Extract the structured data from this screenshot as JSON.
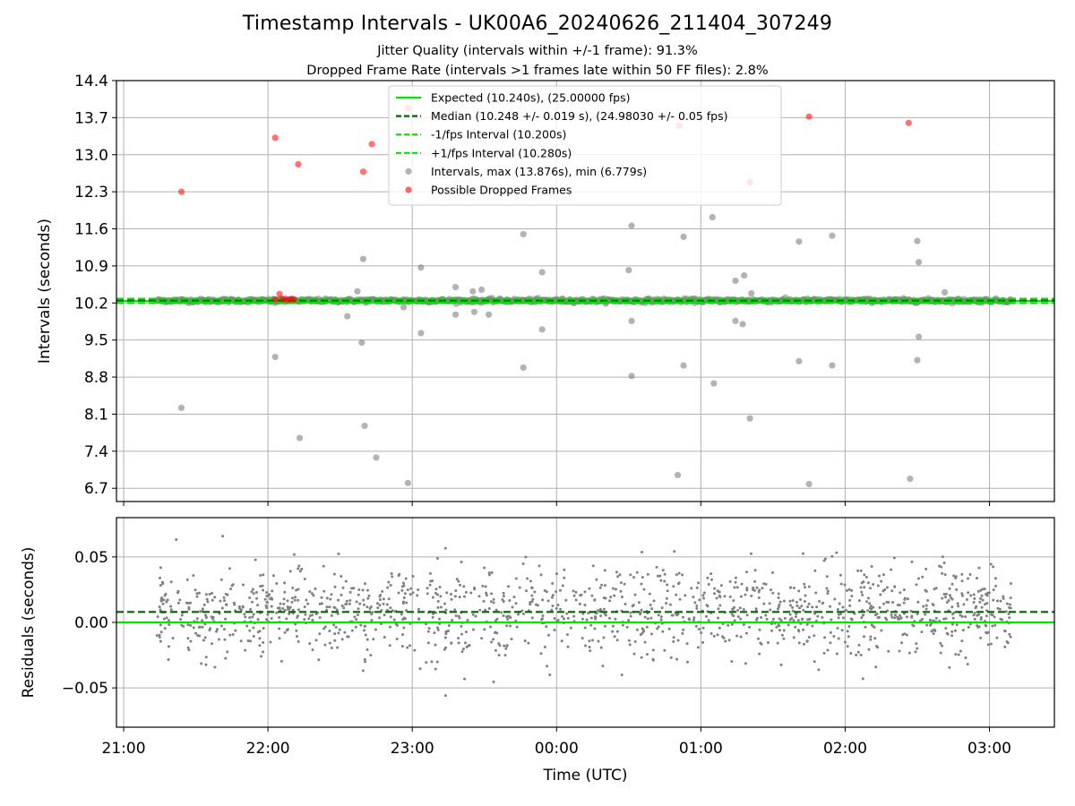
{
  "figure": {
    "title": "Timestamp Intervals - UK00A6_20240626_211404_307249",
    "subtitle_1": "Jitter Quality (intervals within +/-1 frame): 91.3%",
    "subtitle_2": "Dropped Frame Rate (intervals >1 frames late within 50 FF files): 2.8%"
  },
  "colors": {
    "expected": "#00e600",
    "median": "#006400",
    "fps_interval": "#00e600",
    "intervals": "#808080",
    "dropped": "#ff0000",
    "grid": "#b0b0b0"
  },
  "chart_data": [
    {
      "type": "scatter",
      "panel": "top",
      "ylabel": "Intervals (seconds)",
      "ylim": [
        6.45,
        14.4
      ],
      "xlim_hours": [
        20.95,
        27.45
      ],
      "yticks": [
        "6.7",
        "7.4",
        "8.1",
        "8.8",
        "9.5",
        "10.2",
        "10.9",
        "11.6",
        "12.3",
        "13.0",
        "13.7",
        "14.4"
      ],
      "grid": true,
      "legend_position": "upper center",
      "legend": [
        "Expected (10.240s), (25.00000 fps)",
        "Median (10.248 +/- 0.019 s), (24.98030 +/- 0.05 fps)",
        "-1/fps Interval (10.200s)",
        "+1/fps Interval (10.280s)",
        "Intervals, max (13.876s), min (6.779s)",
        "Possible Dropped Frames"
      ],
      "lines": [
        {
          "name": "Expected",
          "y": 10.24,
          "style": "solid"
        },
        {
          "name": "Median",
          "y": 10.248,
          "style": "dashed"
        },
        {
          "name": "-1/fps Interval",
          "y": 10.2,
          "style": "dashed"
        },
        {
          "name": "+1/fps Interval",
          "y": 10.28,
          "style": "dashed"
        }
      ],
      "intervals_band": {
        "x_start": 21.23,
        "x_end": 27.15,
        "y_center": 10.245,
        "y_spread": 0.035
      },
      "interval_outliers": [
        [
          21.4,
          8.22
        ],
        [
          22.05,
          9.18
        ],
        [
          22.05,
          10.2
        ],
        [
          22.22,
          7.65
        ],
        [
          22.55,
          9.95
        ],
        [
          22.62,
          10.42
        ],
        [
          22.66,
          11.03
        ],
        [
          22.65,
          9.45
        ],
        [
          22.67,
          7.88
        ],
        [
          22.75,
          7.28
        ],
        [
          22.97,
          6.8
        ],
        [
          22.94,
          10.12
        ],
        [
          23.06,
          10.87
        ],
        [
          23.06,
          9.63
        ],
        [
          23.3,
          10.5
        ],
        [
          23.3,
          9.98
        ],
        [
          23.42,
          10.42
        ],
        [
          23.43,
          10.03
        ],
        [
          23.48,
          10.45
        ],
        [
          23.53,
          9.98
        ],
        [
          23.77,
          11.5
        ],
        [
          23.77,
          8.98
        ],
        [
          23.9,
          10.78
        ],
        [
          23.9,
          9.7
        ],
        [
          24.5,
          10.82
        ],
        [
          24.52,
          11.66
        ],
        [
          24.52,
          9.86
        ],
        [
          24.52,
          8.82
        ],
        [
          24.84,
          6.95
        ],
        [
          24.88,
          9.02
        ],
        [
          24.88,
          11.45
        ],
        [
          25.08,
          11.82
        ],
        [
          25.09,
          8.68
        ],
        [
          25.24,
          10.62
        ],
        [
          25.24,
          9.86
        ],
        [
          25.3,
          10.72
        ],
        [
          25.29,
          9.8
        ],
        [
          25.34,
          8.02
        ],
        [
          25.35,
          10.38
        ],
        [
          25.68,
          11.36
        ],
        [
          25.68,
          9.1
        ],
        [
          25.75,
          6.78
        ],
        [
          25.91,
          11.47
        ],
        [
          25.91,
          9.02
        ],
        [
          26.45,
          6.88
        ],
        [
          26.5,
          11.37
        ],
        [
          26.51,
          10.97
        ],
        [
          26.51,
          9.56
        ],
        [
          26.5,
          9.12
        ],
        [
          26.69,
          10.4
        ]
      ],
      "dropped_frames": [
        [
          21.4,
          12.3
        ],
        [
          22.05,
          13.32
        ],
        [
          22.05,
          10.27
        ],
        [
          22.08,
          10.37
        ],
        [
          22.1,
          10.27
        ],
        [
          22.12,
          10.28
        ],
        [
          22.14,
          10.26
        ],
        [
          22.16,
          10.27
        ],
        [
          22.18,
          10.27
        ],
        [
          22.21,
          12.82
        ],
        [
          22.66,
          12.68
        ],
        [
          22.72,
          13.2
        ],
        [
          22.97,
          13.88
        ],
        [
          24.85,
          13.55
        ],
        [
          25.34,
          12.48
        ],
        [
          25.75,
          13.72
        ],
        [
          26.44,
          13.6
        ]
      ]
    },
    {
      "type": "scatter",
      "panel": "bottom",
      "ylabel": "Residuals (seconds)",
      "xlabel": "Time (UTC)",
      "ylim": [
        -0.08,
        0.08
      ],
      "yticks": [
        "−0.05",
        "0.00",
        "0.05"
      ],
      "xticks": [
        "21:00",
        "22:00",
        "23:00",
        "00:00",
        "01:00",
        "02:00",
        "03:00"
      ],
      "xlim_hours": [
        20.95,
        27.45
      ],
      "lines": [
        {
          "name": "Expected",
          "y": 0.0,
          "style": "solid"
        },
        {
          "name": "Median",
          "y": 0.008,
          "style": "dashed"
        }
      ],
      "residual_band": {
        "x_start": 21.23,
        "x_end": 27.15,
        "mean": 0.008,
        "sd": 0.017
      }
    }
  ]
}
